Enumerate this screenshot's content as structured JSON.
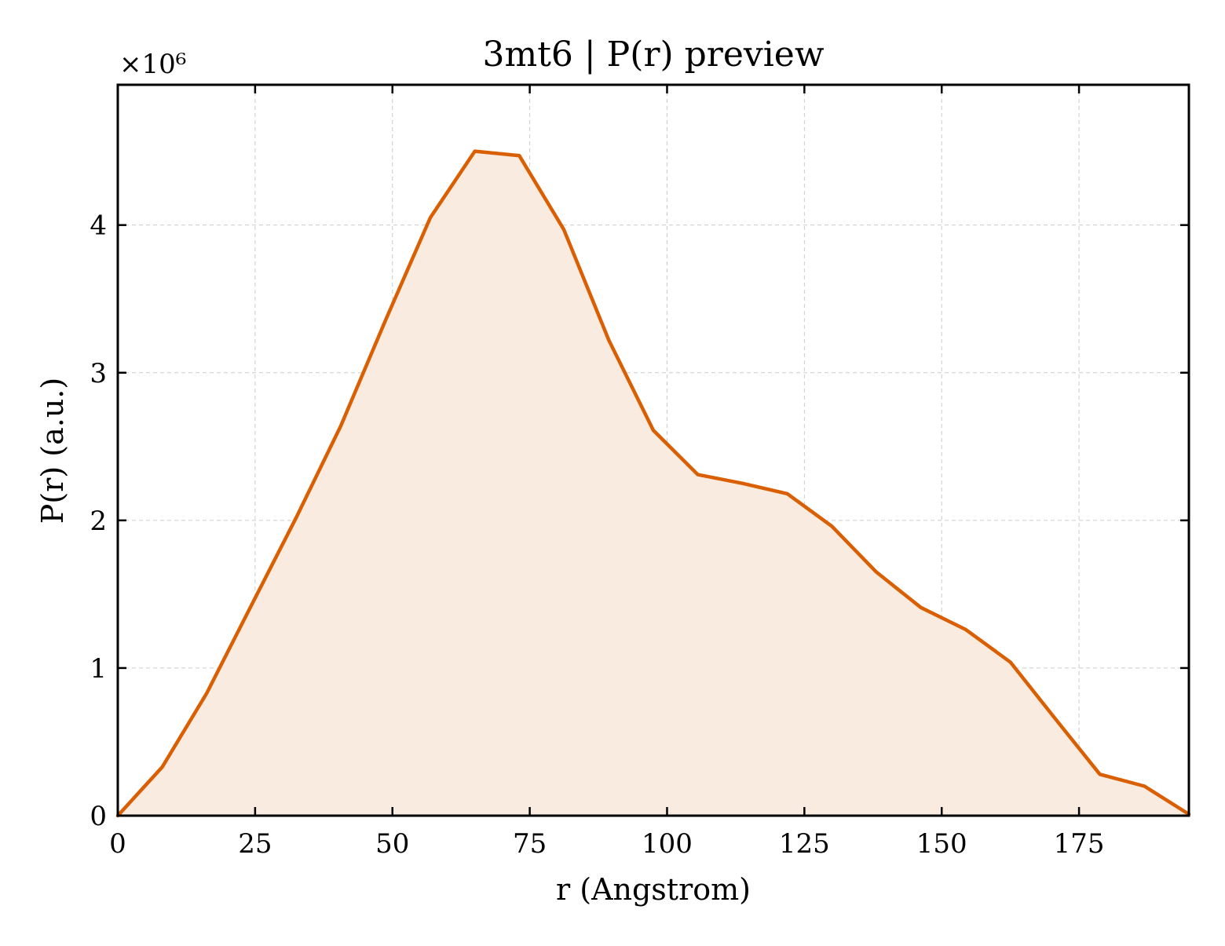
{
  "chart_data": {
    "type": "area",
    "title": "3mt6 | P(r) preview",
    "xlabel": "r (Angstrom)",
    "ylabel": "P(r) (a.u.)",
    "y_offset_label": "×10⁶",
    "y_scale": 1000000,
    "xlim": [
      0,
      195
    ],
    "ylim": [
      0,
      4.95
    ],
    "x_ticks": [
      0,
      25,
      50,
      75,
      100,
      125,
      150,
      175
    ],
    "x_tick_labels": [
      "0",
      "25",
      "50",
      "75",
      "100",
      "125",
      "150",
      "175"
    ],
    "y_ticks": [
      0,
      1,
      2,
      3,
      4
    ],
    "y_tick_labels": [
      "0",
      "1",
      "2",
      "3",
      "4"
    ],
    "grid": true,
    "series": [
      {
        "color": "#d95f02",
        "fill_color": "#f9ebe0",
        "x": [
          0,
          8.1,
          16.2,
          24.4,
          32.5,
          40.6,
          48.8,
          56.9,
          65.0,
          73.1,
          81.2,
          89.4,
          97.5,
          105.6,
          113.8,
          121.9,
          130.0,
          138.1,
          146.2,
          154.4,
          162.5,
          170.6,
          178.8,
          186.9,
          195.0
        ],
        "y": [
          0,
          0.33,
          0.83,
          1.43,
          2.02,
          2.64,
          3.36,
          4.05,
          4.5,
          4.47,
          3.97,
          3.22,
          2.61,
          2.31,
          2.25,
          2.18,
          1.96,
          1.65,
          1.41,
          1.26,
          1.04,
          0.66,
          0.28,
          0.2,
          0.01
        ]
      }
    ]
  }
}
